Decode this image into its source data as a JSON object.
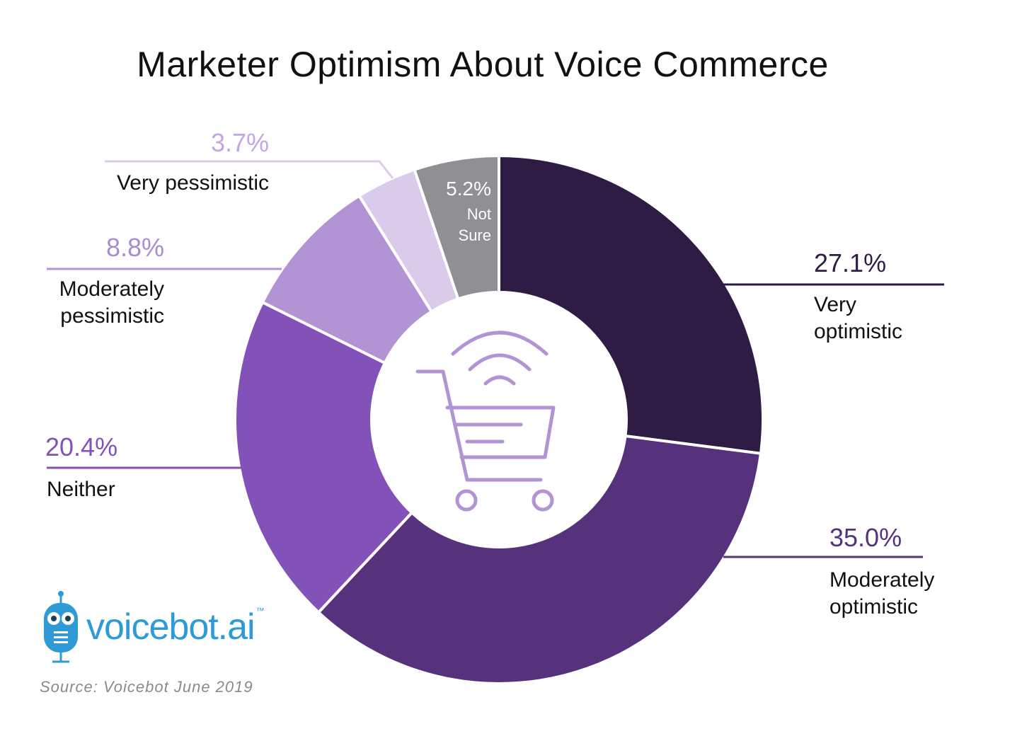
{
  "header": {
    "title": "Marketer Optimism About Voice Commerce"
  },
  "footer": {
    "source": "Source: Voicebot June 2019"
  },
  "logo": {
    "brand": "voicebot.ai",
    "trademark": "™",
    "icon": "robot-microphone-icon"
  },
  "center_icon": "voice-shopping-cart-icon",
  "chart_data": {
    "type": "pie",
    "title": "Marketer Optimism About Voice Commerce",
    "donut": true,
    "slices": [
      {
        "label": "Very optimistic",
        "value": 27.1,
        "value_label": "27.1%",
        "color": "#2f1c45"
      },
      {
        "label": "Moderately optimistic",
        "value": 35.0,
        "value_label": "35.0%",
        "color": "#56327d"
      },
      {
        "label": "Neither",
        "value": 20.4,
        "value_label": "20.4%",
        "color": "#8352b9"
      },
      {
        "label": "Moderately pessimistic",
        "value": 8.8,
        "value_label": "8.8%",
        "color": "#b294d4"
      },
      {
        "label": "Very pessimistic",
        "value": 3.7,
        "value_label": "3.7%",
        "color": "#dbcbea"
      },
      {
        "label": "Not Sure",
        "value": 5.2,
        "value_label": "5.2%",
        "color": "#8f8f94"
      }
    ]
  }
}
